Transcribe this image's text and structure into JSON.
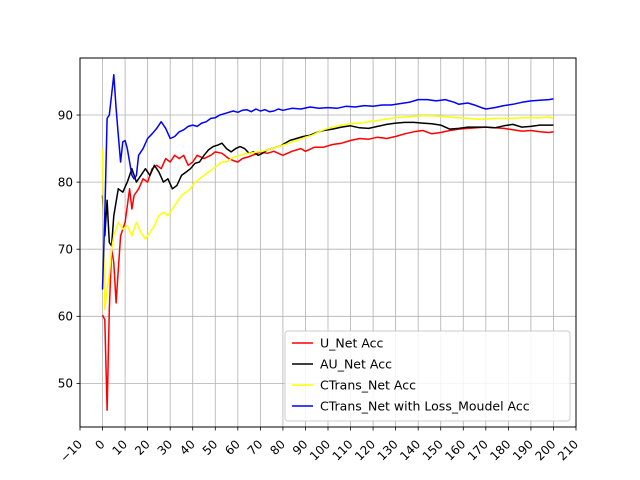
{
  "chart_data": {
    "type": "line",
    "title": "",
    "xlabel": "",
    "ylabel": "",
    "xlim": [
      -10,
      210
    ],
    "ylim": [
      43.5,
      98.5
    ],
    "x_ticks": [
      -10,
      0,
      10,
      20,
      30,
      40,
      50,
      60,
      70,
      80,
      90,
      100,
      110,
      120,
      130,
      140,
      150,
      160,
      170,
      180,
      190,
      200,
      210
    ],
    "x_tick_labels": [
      "−10",
      "0",
      "10",
      "20",
      "30",
      "40",
      "50",
      "60",
      "70",
      "80",
      "90",
      "100",
      "110",
      "120",
      "130",
      "140",
      "150",
      "160",
      "170",
      "180",
      "190",
      "200",
      "210"
    ],
    "y_ticks": [
      50,
      60,
      70,
      80,
      90
    ],
    "y_tick_labels": [
      "50",
      "60",
      "70",
      "80",
      "90"
    ],
    "grid": true,
    "legend_position": "lower-right",
    "series": [
      {
        "name": "U_Net Acc",
        "color": "#ff0000",
        "points": [
          [
            0,
            60.2
          ],
          [
            1,
            59.5
          ],
          [
            2,
            46
          ],
          [
            3,
            61
          ],
          [
            4,
            70
          ],
          [
            5,
            68
          ],
          [
            6,
            62
          ],
          [
            7,
            67
          ],
          [
            8,
            72
          ],
          [
            10,
            74
          ],
          [
            12,
            79
          ],
          [
            13,
            76
          ],
          [
            14,
            78
          ],
          [
            16,
            79
          ],
          [
            18,
            80.5
          ],
          [
            20,
            80
          ],
          [
            22,
            82
          ],
          [
            24,
            82.5
          ],
          [
            26,
            82
          ],
          [
            28,
            83.5
          ],
          [
            30,
            83
          ],
          [
            32,
            84
          ],
          [
            34,
            83.5
          ],
          [
            36,
            84
          ],
          [
            38,
            82.5
          ],
          [
            40,
            83
          ],
          [
            42,
            84
          ],
          [
            45,
            83.5
          ],
          [
            48,
            84
          ],
          [
            50,
            84.5
          ],
          [
            53,
            84.3
          ],
          [
            56,
            83.5
          ],
          [
            58,
            83.2
          ],
          [
            60,
            83
          ],
          [
            62,
            83.5
          ],
          [
            65,
            83.8
          ],
          [
            68,
            84.2
          ],
          [
            70,
            84.5
          ],
          [
            73,
            84.3
          ],
          [
            76,
            84.6
          ],
          [
            80,
            84
          ],
          [
            84,
            84.6
          ],
          [
            88,
            85
          ],
          [
            90,
            84.6
          ],
          [
            94,
            85.2
          ],
          [
            98,
            85.2
          ],
          [
            102,
            85.6
          ],
          [
            106,
            85.8
          ],
          [
            110,
            86.2
          ],
          [
            114,
            86.5
          ],
          [
            118,
            86.4
          ],
          [
            122,
            86.7
          ],
          [
            126,
            86.5
          ],
          [
            130,
            86.8
          ],
          [
            134,
            87.2
          ],
          [
            138,
            87.5
          ],
          [
            142,
            87.7
          ],
          [
            146,
            87.2
          ],
          [
            150,
            87.4
          ],
          [
            154,
            87.7
          ],
          [
            158,
            87.9
          ],
          [
            162,
            88
          ],
          [
            166,
            88.1
          ],
          [
            170,
            88.2
          ],
          [
            174,
            88.1
          ],
          [
            178,
            88
          ],
          [
            182,
            87.8
          ],
          [
            186,
            87.6
          ],
          [
            190,
            87.7
          ],
          [
            194,
            87.5
          ],
          [
            198,
            87.4
          ],
          [
            200,
            87.5
          ]
        ]
      },
      {
        "name": "AU_Net Acc",
        "color": "#000000",
        "points": [
          [
            0,
            78
          ],
          [
            1,
            72
          ],
          [
            2,
            77.3
          ],
          [
            3,
            71
          ],
          [
            4,
            70.5
          ],
          [
            5,
            75
          ],
          [
            7,
            79
          ],
          [
            9,
            78.5
          ],
          [
            11,
            80
          ],
          [
            13,
            82
          ],
          [
            15,
            80
          ],
          [
            17,
            81
          ],
          [
            19,
            82
          ],
          [
            21,
            81
          ],
          [
            23,
            82.5
          ],
          [
            25,
            81.5
          ],
          [
            27,
            80
          ],
          [
            29,
            80.5
          ],
          [
            31,
            79
          ],
          [
            33,
            79.5
          ],
          [
            35,
            81
          ],
          [
            37,
            81.5
          ],
          [
            39,
            82
          ],
          [
            41,
            82.8
          ],
          [
            43,
            83
          ],
          [
            45,
            84
          ],
          [
            47,
            84.8
          ],
          [
            49,
            85.3
          ],
          [
            51,
            85.5
          ],
          [
            53,
            85.8
          ],
          [
            55,
            85
          ],
          [
            57,
            84.5
          ],
          [
            59,
            85
          ],
          [
            61,
            85.3
          ],
          [
            63,
            85
          ],
          [
            65,
            84.3
          ],
          [
            67,
            84.5
          ],
          [
            69,
            84
          ],
          [
            71,
            84.3
          ],
          [
            73,
            84.8
          ],
          [
            75,
            85
          ],
          [
            77,
            85.2
          ],
          [
            79,
            85.4
          ],
          [
            81,
            85.8
          ],
          [
            83,
            86.2
          ],
          [
            86,
            86.5
          ],
          [
            89,
            86.8
          ],
          [
            92,
            87
          ],
          [
            95,
            87.4
          ],
          [
            98,
            87.7
          ],
          [
            102,
            87.9
          ],
          [
            106,
            88.2
          ],
          [
            110,
            88.4
          ],
          [
            114,
            88.1
          ],
          [
            118,
            88
          ],
          [
            122,
            88.3
          ],
          [
            126,
            88.6
          ],
          [
            130,
            88.8
          ],
          [
            134,
            88.9
          ],
          [
            138,
            88.9
          ],
          [
            142,
            88.8
          ],
          [
            146,
            88.7
          ],
          [
            150,
            88.5
          ],
          [
            154,
            87.9
          ],
          [
            158,
            88
          ],
          [
            162,
            88.2
          ],
          [
            166,
            88.2
          ],
          [
            170,
            88.2
          ],
          [
            174,
            88.1
          ],
          [
            178,
            88.4
          ],
          [
            182,
            88.6
          ],
          [
            186,
            88.2
          ],
          [
            190,
            88.3
          ],
          [
            194,
            88.5
          ],
          [
            198,
            88.5
          ],
          [
            200,
            88.5
          ]
        ]
      },
      {
        "name": "CTrans_Net Acc",
        "color": "#ffff00",
        "points": [
          [
            0,
            85
          ],
          [
            1,
            61
          ],
          [
            2,
            64
          ],
          [
            3,
            66
          ],
          [
            4,
            70
          ],
          [
            5,
            72
          ],
          [
            7,
            74
          ],
          [
            9,
            73
          ],
          [
            11,
            73.5
          ],
          [
            13,
            72
          ],
          [
            15,
            74
          ],
          [
            17,
            72.5
          ],
          [
            19,
            71.5
          ],
          [
            21,
            72.5
          ],
          [
            23,
            73.5
          ],
          [
            25,
            75
          ],
          [
            27,
            75.5
          ],
          [
            29,
            75
          ],
          [
            31,
            76
          ],
          [
            33,
            77
          ],
          [
            35,
            78
          ],
          [
            37,
            78.5
          ],
          [
            39,
            79
          ],
          [
            41,
            80
          ],
          [
            43,
            80.5
          ],
          [
            45,
            81
          ],
          [
            47,
            81.5
          ],
          [
            49,
            82
          ],
          [
            51,
            82.5
          ],
          [
            53,
            83
          ],
          [
            55,
            83
          ],
          [
            57,
            83.5
          ],
          [
            59,
            83.8
          ],
          [
            61,
            84
          ],
          [
            63,
            84.2
          ],
          [
            65,
            84.3
          ],
          [
            67,
            84.4
          ],
          [
            69,
            84.5
          ],
          [
            71,
            84.6
          ],
          [
            73,
            84.8
          ],
          [
            75,
            85
          ],
          [
            78,
            85.3
          ],
          [
            81,
            85.6
          ],
          [
            84,
            86
          ],
          [
            87,
            86.3
          ],
          [
            90,
            86.7
          ],
          [
            93,
            87
          ],
          [
            96,
            87.5
          ],
          [
            99,
            87.9
          ],
          [
            102,
            88.2
          ],
          [
            106,
            88.5
          ],
          [
            110,
            88.7
          ],
          [
            114,
            88.8
          ],
          [
            118,
            89
          ],
          [
            122,
            89.2
          ],
          [
            126,
            89.4
          ],
          [
            130,
            89.6
          ],
          [
            134,
            89.7
          ],
          [
            138,
            89.8
          ],
          [
            142,
            89.9
          ],
          [
            146,
            89.9
          ],
          [
            150,
            89.8
          ],
          [
            154,
            89.7
          ],
          [
            158,
            89.6
          ],
          [
            162,
            89.5
          ],
          [
            166,
            89.4
          ],
          [
            170,
            89.4
          ],
          [
            174,
            89.5
          ],
          [
            178,
            89.5
          ],
          [
            182,
            89.5
          ],
          [
            186,
            89.6
          ],
          [
            190,
            89.6
          ],
          [
            194,
            89.6
          ],
          [
            198,
            89.7
          ],
          [
            200,
            89.5
          ]
        ]
      },
      {
        "name": "CTrans_Net with Loss_Moudel Acc",
        "color": "#0000ff",
        "points": [
          [
            0,
            64
          ],
          [
            1,
            75
          ],
          [
            2,
            89.5
          ],
          [
            3,
            90
          ],
          [
            4,
            93
          ],
          [
            5,
            96
          ],
          [
            6,
            91
          ],
          [
            7,
            87
          ],
          [
            8,
            83
          ],
          [
            9,
            86
          ],
          [
            10,
            86.2
          ],
          [
            11,
            85
          ],
          [
            12,
            83
          ],
          [
            13,
            81
          ],
          [
            14,
            80.5
          ],
          [
            15,
            81
          ],
          [
            16,
            84
          ],
          [
            18,
            85
          ],
          [
            20,
            86.5
          ],
          [
            22,
            87.2
          ],
          [
            24,
            88
          ],
          [
            26,
            89
          ],
          [
            28,
            88
          ],
          [
            30,
            86.5
          ],
          [
            32,
            86.8
          ],
          [
            34,
            87.5
          ],
          [
            36,
            87.8
          ],
          [
            38,
            88.3
          ],
          [
            40,
            88.5
          ],
          [
            42,
            88.3
          ],
          [
            44,
            88.8
          ],
          [
            46,
            89
          ],
          [
            48,
            89.5
          ],
          [
            50,
            89.6
          ],
          [
            52,
            90
          ],
          [
            54,
            90.2
          ],
          [
            56,
            90.4
          ],
          [
            58,
            90.6
          ],
          [
            60,
            90.4
          ],
          [
            62,
            90.7
          ],
          [
            64,
            90.8
          ],
          [
            66,
            90.5
          ],
          [
            68,
            90.9
          ],
          [
            70,
            90.6
          ],
          [
            72,
            90.8
          ],
          [
            74,
            90.5
          ],
          [
            76,
            90.6
          ],
          [
            78,
            90.9
          ],
          [
            80,
            90.7
          ],
          [
            84,
            91
          ],
          [
            88,
            90.9
          ],
          [
            92,
            91.2
          ],
          [
            96,
            91
          ],
          [
            100,
            91.1
          ],
          [
            104,
            91
          ],
          [
            108,
            91.3
          ],
          [
            112,
            91.2
          ],
          [
            116,
            91.4
          ],
          [
            120,
            91.3
          ],
          [
            124,
            91.5
          ],
          [
            128,
            91.5
          ],
          [
            132,
            91.7
          ],
          [
            136,
            91.9
          ],
          [
            140,
            92.3
          ],
          [
            144,
            92.3
          ],
          [
            148,
            92.1
          ],
          [
            152,
            92.3
          ],
          [
            156,
            91.9
          ],
          [
            158,
            91.6
          ],
          [
            162,
            91.8
          ],
          [
            165,
            91.5
          ],
          [
            168,
            91.1
          ],
          [
            170,
            90.9
          ],
          [
            174,
            91.1
          ],
          [
            178,
            91.4
          ],
          [
            182,
            91.6
          ],
          [
            186,
            91.9
          ],
          [
            190,
            92.1
          ],
          [
            194,
            92.2
          ],
          [
            198,
            92.3
          ],
          [
            200,
            92.4
          ]
        ]
      }
    ]
  }
}
